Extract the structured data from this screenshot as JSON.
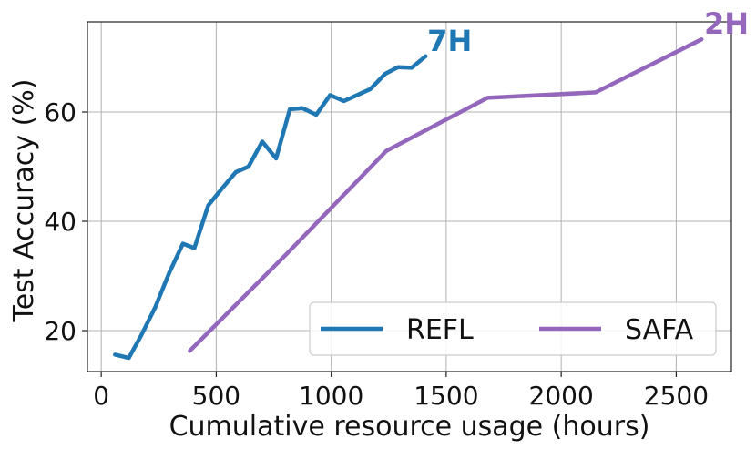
{
  "chart_data": {
    "type": "line",
    "xlabel": "Cumulative resource usage (hours)",
    "ylabel": "Test Accuracy (%)",
    "xlim": [
      -60,
      2740
    ],
    "ylim": [
      12.5,
      76.5
    ],
    "xticks": [
      0,
      500,
      1000,
      1500,
      2000,
      2500
    ],
    "yticks": [
      20,
      40,
      60
    ],
    "xtick_labels": [
      "0",
      "500",
      "1000",
      "1500",
      "2000",
      "2500"
    ],
    "ytick_labels": [
      "20",
      "40",
      "60"
    ],
    "grid": true,
    "legend": {
      "placement": "lower-right",
      "columns": 2
    },
    "series": [
      {
        "name": "REFL",
        "color": "#1f77b4",
        "end_label": "7H",
        "x": [
          60,
          120,
          175,
          235,
          295,
          355,
          405,
          465,
          525,
          585,
          640,
          700,
          760,
          820,
          875,
          935,
          995,
          1055,
          1170,
          1235,
          1290,
          1350,
          1410
        ],
        "y": [
          15.6,
          15.0,
          19.2,
          24.3,
          30.5,
          35.9,
          35.1,
          42.9,
          46.0,
          49.0,
          50.0,
          54.6,
          51.5,
          60.5,
          60.7,
          59.5,
          63.1,
          62.0,
          64.2,
          67.0,
          68.2,
          68.1,
          70.2
        ]
      },
      {
        "name": "SAFA",
        "color": "#9467bd",
        "end_label": "2H",
        "x": [
          385,
          810,
          1240,
          1680,
          2150,
          2610
        ],
        "y": [
          16.3,
          34.2,
          52.9,
          62.6,
          63.6,
          73.3
        ]
      }
    ]
  }
}
